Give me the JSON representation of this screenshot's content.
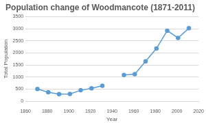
{
  "chart_data": {
    "type": "line",
    "title": "Population change of Woodmancote (1871-2011)",
    "x_label": "Year",
    "y_label": "Total Population",
    "x": [
      1871,
      1881,
      1891,
      1901,
      1911,
      1921,
      1931,
      1941,
      1951,
      1961,
      1971,
      1981,
      1991,
      2001,
      2011
    ],
    "values": [
      500,
      370,
      290,
      300,
      450,
      530,
      640,
      null,
      1080,
      1120,
      1650,
      2180,
      2920,
      2620,
      3020
    ],
    "color": "#5b9bd5",
    "marker": "circle",
    "xlim": [
      1860,
      2020
    ],
    "xticks": [
      1860,
      1880,
      1900,
      1920,
      1940,
      1960,
      1980,
      2000,
      2020
    ],
    "ylim": [
      0,
      3500
    ],
    "yticks": [
      0,
      500,
      1000,
      1500,
      2000,
      2500,
      3000,
      3500
    ],
    "grid": true
  }
}
